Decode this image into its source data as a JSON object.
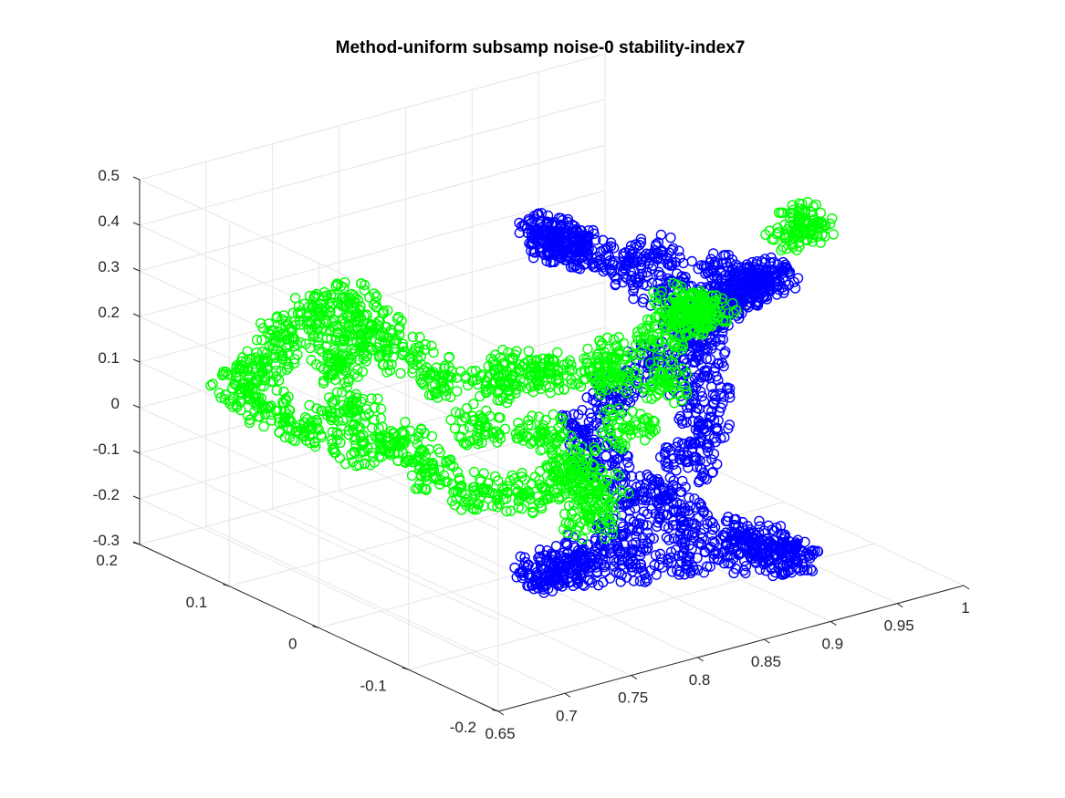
{
  "chart_data": {
    "type": "scatter",
    "title": "Method-uniform subsamp noise-0 stability-index7",
    "xlabel": "",
    "ylabel": "",
    "zlabel": "",
    "grid": true,
    "marker": "open-circle",
    "x_axis": {
      "ticks": [
        "0.65",
        "0.7",
        "0.75",
        "0.8",
        "0.85",
        "0.9",
        "0.95",
        "1"
      ],
      "lim": [
        0.65,
        1
      ]
    },
    "y_axis": {
      "ticks": [
        "-0.2",
        "-0.1",
        "0",
        "0.1",
        "0.2"
      ],
      "lim": [
        -0.2,
        0.2
      ]
    },
    "z_axis": {
      "ticks": [
        "-0.3",
        "-0.2",
        "-0.1",
        "0",
        "0.1",
        "0.2",
        "0.3",
        "0.4",
        "0.5"
      ],
      "lim": [
        -0.3,
        0.5
      ]
    },
    "series": [
      {
        "color": "#0000ff",
        "points": [
          [
            0.86,
            -0.18,
            0.47
          ],
          [
            0.88,
            -0.16,
            0.43
          ],
          [
            0.89,
            -0.13,
            0.38
          ],
          [
            0.9,
            -0.1,
            0.33
          ],
          [
            0.9,
            -0.07,
            0.27
          ],
          [
            0.9,
            -0.05,
            0.2
          ],
          [
            0.88,
            -0.03,
            0.13
          ],
          [
            0.86,
            -0.02,
            0.07
          ],
          [
            0.83,
            -0.03,
            0.02
          ],
          [
            0.82,
            -0.06,
            -0.02
          ],
          [
            0.82,
            -0.1,
            -0.05
          ],
          [
            0.83,
            -0.14,
            -0.08
          ],
          [
            0.85,
            -0.17,
            -0.1
          ],
          [
            0.87,
            -0.18,
            -0.13
          ],
          [
            0.89,
            -0.17,
            -0.18
          ],
          [
            0.9,
            -0.14,
            -0.21
          ],
          [
            0.9,
            -0.1,
            -0.24
          ],
          [
            0.88,
            -0.07,
            -0.26
          ],
          [
            0.85,
            -0.05,
            -0.27
          ],
          [
            0.82,
            -0.04,
            -0.27
          ],
          [
            0.79,
            -0.05,
            -0.25
          ],
          [
            0.77,
            -0.07,
            -0.2
          ],
          [
            0.78,
            -0.1,
            -0.15
          ],
          [
            0.8,
            -0.12,
            -0.1
          ],
          [
            0.83,
            -0.12,
            -0.05
          ],
          [
            0.86,
            -0.1,
            -0.01
          ],
          [
            0.89,
            -0.07,
            0.02
          ],
          [
            0.91,
            -0.04,
            0.05
          ],
          [
            0.92,
            -0.02,
            0.1
          ],
          [
            0.93,
            0.0,
            0.15
          ],
          [
            0.92,
            0.02,
            0.21
          ],
          [
            0.9,
            0.03,
            0.27
          ],
          [
            0.87,
            0.03,
            0.33
          ],
          [
            0.84,
            0.02,
            0.38
          ],
          [
            0.82,
            0.0,
            0.43
          ],
          [
            0.81,
            -0.03,
            0.46
          ],
          [
            0.8,
            -0.06,
            0.47
          ],
          [
            0.84,
            -0.09,
            0.45
          ],
          [
            0.87,
            -0.11,
            0.41
          ],
          [
            0.88,
            -0.12,
            0.36
          ]
        ]
      },
      {
        "color": "#00ff00",
        "points": [
          [
            0.84,
            -0.12,
            0.37
          ],
          [
            0.86,
            -0.11,
            0.33
          ],
          [
            0.88,
            -0.09,
            0.3
          ],
          [
            0.89,
            -0.06,
            0.25
          ],
          [
            0.89,
            -0.03,
            0.18
          ],
          [
            0.87,
            0.0,
            0.12
          ],
          [
            0.84,
            0.02,
            0.09
          ],
          [
            0.81,
            0.03,
            0.08
          ],
          [
            0.78,
            0.05,
            0.1
          ],
          [
            0.76,
            0.07,
            0.15
          ],
          [
            0.75,
            0.09,
            0.2
          ],
          [
            0.74,
            0.1,
            0.25
          ],
          [
            0.73,
            0.12,
            0.22
          ],
          [
            0.72,
            0.14,
            0.16
          ],
          [
            0.71,
            0.15,
            0.1
          ],
          [
            0.7,
            0.16,
            0.05
          ],
          [
            0.71,
            0.15,
            0.0
          ],
          [
            0.73,
            0.13,
            -0.04
          ],
          [
            0.75,
            0.1,
            -0.07
          ],
          [
            0.77,
            0.06,
            -0.1
          ],
          [
            0.78,
            0.02,
            -0.12
          ],
          [
            0.79,
            -0.02,
            -0.1
          ],
          [
            0.8,
            -0.05,
            -0.05
          ],
          [
            0.8,
            -0.06,
            0.0
          ],
          [
            0.79,
            -0.04,
            0.05
          ],
          [
            0.77,
            0.0,
            0.05
          ],
          [
            0.74,
            0.04,
            0.0
          ],
          [
            0.73,
            0.08,
            0.04
          ],
          [
            0.74,
            0.11,
            0.1
          ],
          [
            0.75,
            0.12,
            0.14
          ],
          [
            0.8,
            0.0,
            0.15
          ],
          [
            0.84,
            -0.04,
            0.14
          ],
          [
            0.87,
            -0.06,
            0.12
          ],
          [
            0.86,
            -0.03,
            0.0
          ],
          [
            0.84,
            -0.03,
            -0.12
          ],
          [
            0.82,
            -0.05,
            -0.15
          ],
          [
            0.9,
            -0.16,
            0.52
          ],
          [
            0.91,
            -0.16,
            0.53
          ]
        ]
      }
    ]
  }
}
